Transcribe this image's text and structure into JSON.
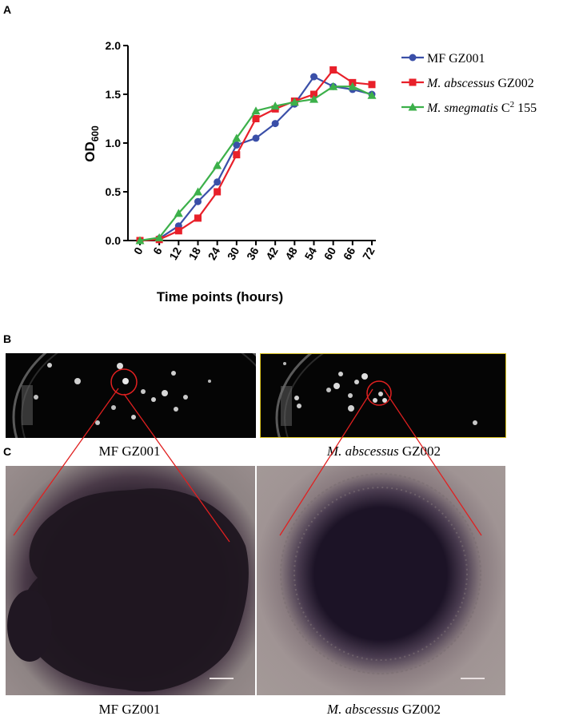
{
  "panels": {
    "a": "A",
    "b": "B",
    "c": "C"
  },
  "chart_data": {
    "type": "line",
    "x": [
      0,
      6,
      12,
      18,
      24,
      30,
      36,
      42,
      48,
      54,
      60,
      66,
      72
    ],
    "tick_labels": [
      "0",
      "6",
      "12",
      "18",
      "24",
      "30",
      "36",
      "42",
      "48",
      "54",
      "60",
      "66",
      "72"
    ],
    "xlabel": "Time points (hours)",
    "ylabel": "OD",
    "ylabel_sub": "600",
    "ylim": [
      0,
      2.0
    ],
    "yticks": [
      "0.0",
      "0.5",
      "1.0",
      "1.5",
      "2.0"
    ],
    "grid": false,
    "legend_position": "right",
    "series": [
      {
        "name": "MF GZ001",
        "name_prefix": "MF GZ001",
        "name_italic": "",
        "name_suffix": "",
        "name_sup": "",
        "name_tail": "",
        "color": "#3a4fa8",
        "marker": "circle",
        "values": [
          0.0,
          0.02,
          0.15,
          0.4,
          0.6,
          0.98,
          1.05,
          1.2,
          1.4,
          1.68,
          1.58,
          1.55,
          1.5
        ]
      },
      {
        "name": "M. abscessus GZ002",
        "name_prefix": "",
        "name_italic": "M. abscessus",
        "name_suffix": " GZ002",
        "name_sup": "",
        "name_tail": "",
        "color": "#e8202a",
        "marker": "square",
        "values": [
          0.0,
          0.01,
          0.1,
          0.23,
          0.5,
          0.88,
          1.25,
          1.35,
          1.43,
          1.5,
          1.75,
          1.62,
          1.6
        ]
      },
      {
        "name": "M. smegmatis C2 155",
        "name_prefix": "",
        "name_italic": "M. smegmatis",
        "name_suffix": " C",
        "name_sup": "2",
        "name_tail": " 155",
        "color": "#3cb04a",
        "marker": "triangle",
        "values": [
          0.0,
          0.03,
          0.28,
          0.5,
          0.77,
          1.05,
          1.33,
          1.38,
          1.42,
          1.45,
          1.58,
          1.58,
          1.49
        ]
      }
    ]
  },
  "panel_b": {
    "left_caption": "MF GZ001",
    "right_caption_italic": "M. abscessus",
    "right_caption_rest": " GZ002"
  },
  "panel_c": {
    "left_caption": "MF GZ001",
    "right_caption_italic": "M. abscessus",
    "right_caption_rest": " GZ002"
  },
  "colors": {
    "highlight": "#e02020",
    "plate_frame": "#d8c020"
  }
}
